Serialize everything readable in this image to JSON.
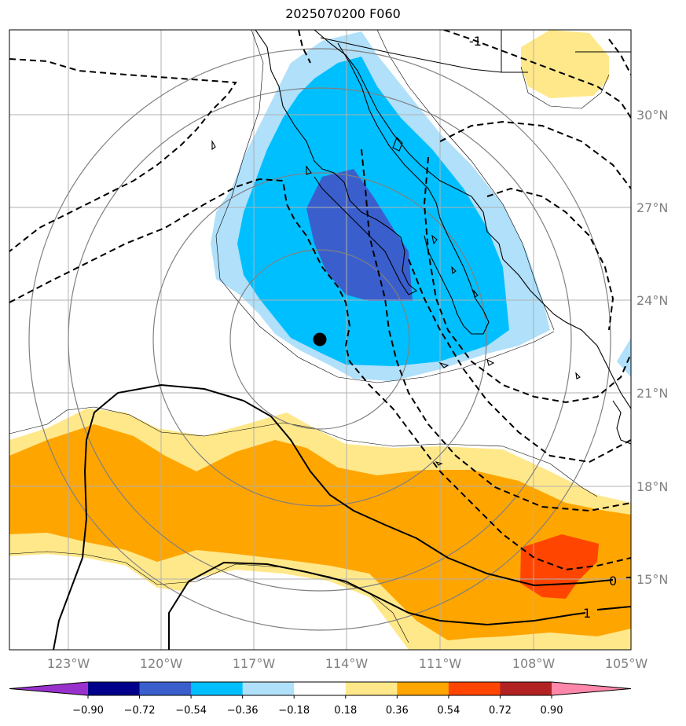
{
  "title": "2025070200 F060",
  "map": {
    "lat_labels": [
      "30°N",
      "27°N",
      "24°N",
      "21°N",
      "18°N",
      "15°N"
    ],
    "lon_labels": [
      "123°W",
      "120°W",
      "117°W",
      "114°W",
      "111°W",
      "108°W",
      "105°W"
    ],
    "gridlines": true,
    "storm_center_marker": "black-dot",
    "contour_labels": [
      "0",
      "1",
      "-1"
    ]
  },
  "colorbar": {
    "ticks": [
      "−0.90",
      "−0.72",
      "−0.54",
      "−0.36",
      "−0.18",
      "0.18",
      "0.36",
      "0.54",
      "0.72",
      "0.90"
    ],
    "colors": [
      "#9932cc",
      "#00008b",
      "#3a5fcd",
      "#00bfff",
      "#b0e0fa",
      "#ffffff",
      "#ffe88a",
      "#ffa500",
      "#ff4500",
      "#b22222",
      "#ff88aa"
    ]
  }
}
